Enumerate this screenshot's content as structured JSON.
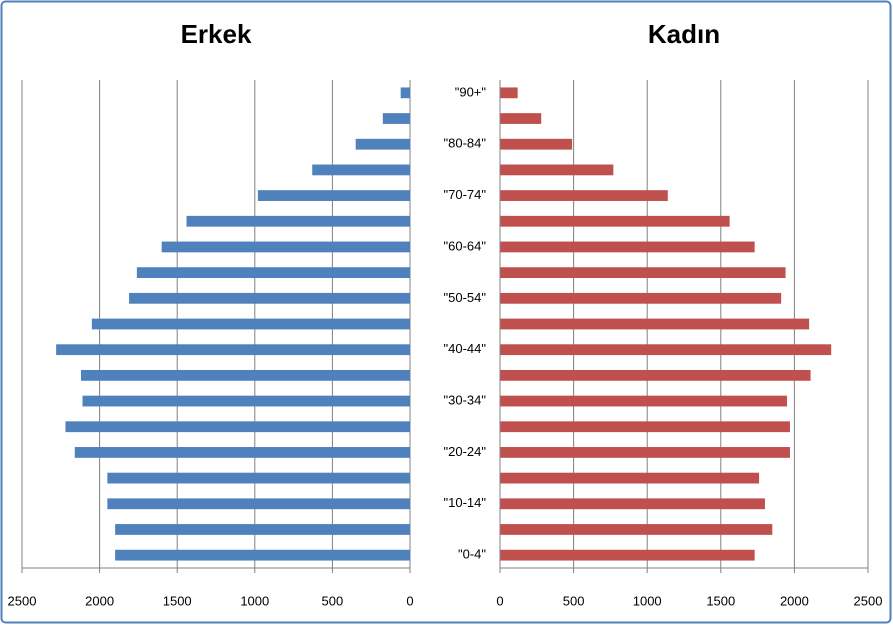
{
  "chart_data": [
    {
      "type": "bar",
      "orientation": "horizontal",
      "title": "Erkek",
      "color": "#4f81bd",
      "values": [
        1900,
        1900,
        1950,
        1950,
        2160,
        2220,
        2110,
        2120,
        2280,
        2050,
        1810,
        1760,
        1600,
        1440,
        980,
        630,
        350,
        175,
        60
      ],
      "xlim": [
        2500,
        0
      ],
      "xticks": [
        2500,
        2000,
        1500,
        1000,
        500,
        0
      ],
      "grid": true
    },
    {
      "type": "bar",
      "orientation": "horizontal",
      "title": "Kadın",
      "color": "#c0504d",
      "categories": [
        "\"0-4\"",
        null,
        "\"10-14\"",
        null,
        "\"20-24\"",
        null,
        "\"30-34\"",
        null,
        "\"40-44\"",
        null,
        "\"50-54\"",
        null,
        "\"60-64\"",
        null,
        "\"70-74\"",
        null,
        "\"80-84\"",
        null,
        "\"90+\""
      ],
      "values": [
        1730,
        1850,
        1800,
        1760,
        1970,
        1970,
        1950,
        2110,
        2250,
        2100,
        1910,
        1940,
        1730,
        1560,
        1140,
        770,
        490,
        280,
        120
      ],
      "xlim": [
        0,
        2500
      ],
      "xticks": [
        0,
        500,
        1000,
        1500,
        2000,
        2500
      ],
      "grid": true
    }
  ]
}
